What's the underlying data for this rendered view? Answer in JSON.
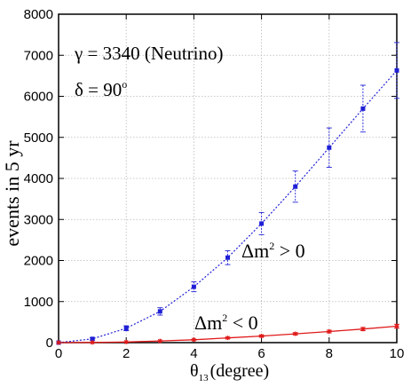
{
  "chart_data": {
    "type": "line",
    "xlabel": "θ",
    "xlabel_sub": "13",
    "xlabel_unit": "(degree)",
    "ylabel": "events in 5 yr",
    "xlim": [
      0,
      10
    ],
    "ylim": [
      0,
      8000
    ],
    "x_ticks": [
      0,
      2,
      4,
      6,
      8,
      10
    ],
    "y_ticks": [
      0,
      1000,
      2000,
      3000,
      4000,
      5000,
      6000,
      7000,
      8000
    ],
    "grid": true,
    "annotations": {
      "gamma": "γ = 3340 (Neutrino)",
      "delta_label": "δ = 90",
      "delta_sup": "o",
      "dm_pos_label": "Δm",
      "dm_pos_sup": "2",
      "dm_pos_rel": " > 0",
      "dm_neg_label": "Δm",
      "dm_neg_sup": "2",
      "dm_neg_rel": " < 0"
    },
    "series": [
      {
        "color": "#1f1fd6",
        "line_style": "dotted",
        "marker": "square",
        "x": [
          0,
          1,
          2,
          3,
          4,
          5,
          6,
          7,
          8,
          9,
          10
        ],
        "y": [
          0,
          90,
          350,
          760,
          1360,
          2070,
          2900,
          3800,
          4750,
          5700,
          6630
        ],
        "err": [
          0,
          30,
          60,
          90,
          120,
          170,
          270,
          380,
          480,
          570,
          680
        ]
      },
      {
        "color": "#e01a1a",
        "line_style": "solid",
        "marker": "star",
        "x": [
          0,
          1,
          2,
          3,
          4,
          5,
          6,
          7,
          8,
          9,
          10
        ],
        "y": [
          0,
          5,
          15,
          40,
          70,
          115,
          160,
          215,
          270,
          330,
          400
        ],
        "err": [
          0,
          2,
          5,
          8,
          12,
          15,
          20,
          25,
          32,
          40,
          48
        ]
      }
    ]
  }
}
